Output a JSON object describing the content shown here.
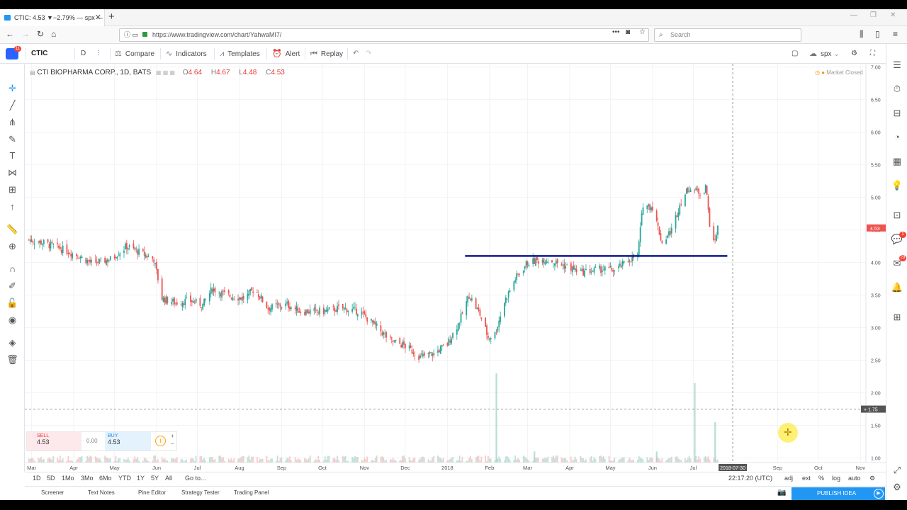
{
  "browser": {
    "tab_title": "CTIC: 4.53 ▼−2.79% — spx — …",
    "url": "https://www.tradingview.com/chart/YahwaMI7/",
    "search_placeholder": "Search"
  },
  "toolbar": {
    "symbol": "CTIC",
    "interval": "D",
    "compare": "Compare",
    "indicators": "Indicators",
    "templates": "Templates",
    "alert": "Alert",
    "replay": "Replay",
    "layout_name": "spx",
    "notifications_badge": "11"
  },
  "legend": {
    "title": "CTI BIOPHARMA CORP., 1D, BATS",
    "open_label": "O",
    "open": "4.64",
    "high_label": "H",
    "high": "4.67",
    "low_label": "L",
    "low": "4.48",
    "close_label": "C",
    "close": "4.53"
  },
  "market_status": "Market Closed",
  "trade_panel": {
    "sell_label": "SELL",
    "sell_price": "4.53",
    "spread": "0.00",
    "buy_label": "BUY",
    "buy_price": "4.53",
    "plus": "+",
    "minus": "−"
  },
  "right_badges": [
    "1",
    "29"
  ],
  "range_buttons": [
    "1D",
    "5D",
    "1Mo",
    "3Mo",
    "6Mo",
    "YTD",
    "1Y",
    "5Y",
    "All",
    "Go to..."
  ],
  "timezone": "22:17:20 (UTC)",
  "scale_options": [
    "adj",
    "ext",
    "%",
    "log",
    "auto"
  ],
  "bottom_tabs": [
    "Screener",
    "Text Notes",
    "Pine Editor",
    "Strategy Tester",
    "Trading Panel"
  ],
  "publish_label": "PUBLISH IDEA",
  "colors": {
    "up": "#26a69a",
    "down": "#ef5350",
    "line": "#0d1a8c",
    "price_tag": "#ef5350",
    "accent": "#2196f3"
  },
  "icons": [
    "crosshair-icon",
    "trendline-icon",
    "pitchfork-icon",
    "brush-icon",
    "text-icon",
    "pattern-icon",
    "prediction-icon",
    "arrow-icon",
    "ruler-icon",
    "zoom-icon",
    "magnet-icon",
    "lock-drawings-icon",
    "unlock-icon",
    "eye-icon",
    "layers-icon",
    "trash-icon"
  ],
  "chart_data": {
    "type": "candlestick",
    "symbol": "CTIC",
    "yaxis": {
      "ticks": [
        "1.00",
        "1.50",
        "2.00",
        "2.50",
        "3.00",
        "3.50",
        "4.00",
        "4.50",
        "5.00",
        "5.50",
        "6.00",
        "6.50",
        "7.00"
      ],
      "ylim": [
        0.93,
        7.05
      ]
    },
    "xaxis": {
      "ticks": [
        "Mar",
        "Apr",
        "May",
        "Jun",
        "Jul",
        "Aug",
        "Sep",
        "Oct",
        "Nov",
        "Dec",
        "2018",
        "Feb",
        "Mar",
        "Apr",
        "May",
        "Jun",
        "Jul",
        "Sep",
        "Oct",
        "Nov"
      ],
      "tick_dates": [
        "2017-03-01",
        "2017-04-01",
        "2017-05-01",
        "2017-06-01",
        "2017-07-01",
        "2017-08-01",
        "2017-09-01",
        "2017-10-01",
        "2017-11-01",
        "2017-12-01",
        "2018-01-01",
        "2018-02-01",
        "2018-03-01",
        "2018-04-01",
        "2018-05-01",
        "2018-06-01",
        "2018-07-01",
        "2018-09-01",
        "2018-10-01",
        "2018-11-01"
      ],
      "range": [
        "2017-02-24",
        "2018-11-05"
      ]
    },
    "last_price": "4.53",
    "crosshair_price": "1.75",
    "crosshair_date": "2018-07-30",
    "horizontal_line": {
      "price": 4.1,
      "from": "2018-01-14",
      "to": "2018-07-26"
    },
    "close_path": [
      [
        "2017-02-27",
        4.35
      ],
      [
        "2017-03-10",
        4.3
      ],
      [
        "2017-03-24",
        4.2
      ],
      [
        "2017-04-05",
        4.1
      ],
      [
        "2017-04-15",
        3.98
      ],
      [
        "2017-04-28",
        4.05
      ],
      [
        "2017-05-10",
        4.25
      ],
      [
        "2017-05-20",
        4.15
      ],
      [
        "2017-05-30",
        4.05
      ],
      [
        "2017-06-05",
        3.45
      ],
      [
        "2017-06-15",
        3.38
      ],
      [
        "2017-06-25",
        3.42
      ],
      [
        "2017-07-05",
        3.35
      ],
      [
        "2017-07-12",
        3.6
      ],
      [
        "2017-07-22",
        3.5
      ],
      [
        "2017-08-05",
        3.45
      ],
      [
        "2017-08-12",
        3.6
      ],
      [
        "2017-08-22",
        3.3
      ],
      [
        "2017-09-05",
        3.35
      ],
      [
        "2017-09-15",
        3.25
      ],
      [
        "2017-10-01",
        3.25
      ],
      [
        "2017-10-15",
        3.3
      ],
      [
        "2017-10-28",
        3.25
      ],
      [
        "2017-11-08",
        3.05
      ],
      [
        "2017-11-20",
        2.8
      ],
      [
        "2017-12-01",
        2.72
      ],
      [
        "2017-12-12",
        2.55
      ],
      [
        "2017-12-22",
        2.6
      ],
      [
        "2018-01-01",
        2.75
      ],
      [
        "2018-01-10",
        3.1
      ],
      [
        "2018-01-17",
        3.5
      ],
      [
        "2018-01-25",
        3.2
      ],
      [
        "2018-01-31",
        2.85
      ],
      [
        "2018-02-05",
        2.9
      ],
      [
        "2018-02-12",
        3.4
      ],
      [
        "2018-02-20",
        3.75
      ],
      [
        "2018-03-01",
        4.0
      ],
      [
        "2018-03-15",
        4.05
      ],
      [
        "2018-03-28",
        3.95
      ],
      [
        "2018-04-10",
        3.85
      ],
      [
        "2018-04-25",
        3.9
      ],
      [
        "2018-05-05",
        3.88
      ],
      [
        "2018-05-15",
        4.05
      ],
      [
        "2018-05-21",
        4.1
      ],
      [
        "2018-05-25",
        4.9
      ],
      [
        "2018-06-01",
        4.85
      ],
      [
        "2018-06-08",
        4.3
      ],
      [
        "2018-06-15",
        4.5
      ],
      [
        "2018-06-22",
        4.95
      ],
      [
        "2018-06-28",
        5.15
      ],
      [
        "2018-07-03",
        5.1
      ],
      [
        "2018-07-08",
        5.05
      ],
      [
        "2018-07-10",
        5.2
      ],
      [
        "2018-07-15",
        4.2
      ],
      [
        "2018-07-19",
        4.53
      ]
    ],
    "volume_spikes": [
      [
        "2018-02-06",
        2.3
      ],
      [
        "2018-07-02",
        2.15
      ],
      [
        "2018-07-17",
        1.55
      ],
      [
        "2018-06-04",
        1.1
      ],
      [
        "2018-03-06",
        1.1
      ]
    ]
  }
}
